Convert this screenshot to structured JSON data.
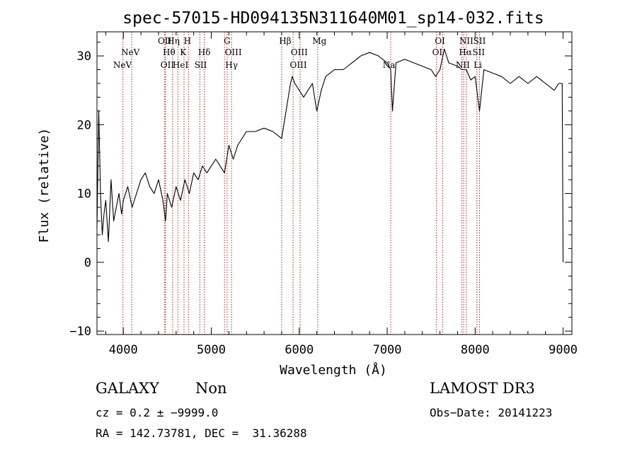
{
  "chart_data": {
    "type": "line",
    "title": "spec-57015-HD094135N311640M01_sp14-032.fits",
    "xlabel": "Wavelength (Å)",
    "ylabel": "Flux (relative)",
    "xlim": [
      3700,
      9100
    ],
    "ylim": [
      -10.5,
      33.5
    ],
    "xticks": [
      4000,
      5000,
      6000,
      7000,
      8000,
      9000
    ],
    "xtick_labels": [
      "4000",
      "5000",
      "6000",
      "7000",
      "8000",
      "9000"
    ],
    "yticks": [
      -10,
      0,
      10,
      20,
      30
    ],
    "ytick_labels": [
      "−10",
      "0",
      "10",
      "20",
      "30"
    ],
    "grid": false,
    "series": [
      {
        "name": "spectrum",
        "x": [
          3700,
          3720,
          3740,
          3760,
          3780,
          3800,
          3830,
          3860,
          3890,
          3920,
          3950,
          3980,
          4000,
          4050,
          4100,
          4150,
          4200,
          4250,
          4300,
          4350,
          4400,
          4450,
          4480,
          4500,
          4550,
          4600,
          4650,
          4700,
          4750,
          4800,
          4850,
          4900,
          4950,
          5000,
          5050,
          5100,
          5150,
          5200,
          5250,
          5300,
          5400,
          5500,
          5600,
          5700,
          5800,
          5850,
          5900,
          5920,
          5950,
          6000,
          6050,
          6100,
          6150,
          6200,
          6250,
          6300,
          6400,
          6500,
          6600,
          6700,
          6800,
          6900,
          6950,
          7000,
          7040,
          7060,
          7100,
          7200,
          7300,
          7400,
          7500,
          7550,
          7600,
          7650,
          7700,
          7800,
          7850,
          7900,
          7950,
          8000,
          8050,
          8100,
          8200,
          8300,
          8400,
          8500,
          8600,
          8700,
          8800,
          8900,
          8950,
          8990,
          9000
        ],
        "y": [
          5,
          22,
          10,
          4,
          7,
          9,
          3,
          12,
          6,
          8,
          10,
          7,
          9,
          11,
          8,
          10,
          12,
          13,
          11,
          10,
          12,
          9,
          6,
          10,
          8,
          11,
          9,
          12,
          10,
          13,
          12,
          14,
          13,
          14,
          15,
          14,
          13,
          17,
          15,
          17,
          19,
          19,
          19.5,
          19,
          18,
          22,
          26,
          27,
          26,
          25,
          24,
          25,
          26,
          22,
          25,
          27,
          28,
          28,
          29,
          30,
          30.5,
          30,
          29.5,
          29,
          28,
          22,
          29,
          29.5,
          29,
          28.5,
          28,
          27,
          28,
          31,
          29,
          28.5,
          28,
          28,
          26.5,
          27,
          22,
          28,
          27.5,
          27,
          26,
          27,
          26,
          27,
          26,
          25,
          26,
          26,
          0
        ]
      }
    ],
    "line_labels_top": [
      {
        "x": 4470,
        "label": "OII"
      },
      {
        "x": 4570,
        "label": "Hη"
      },
      {
        "x": 4730,
        "label": "H"
      },
      {
        "x": 5180,
        "label": "G"
      },
      {
        "x": 5840,
        "label": "Hβ"
      },
      {
        "x": 6230,
        "label": "Mg"
      },
      {
        "x": 7600,
        "label": "OI"
      },
      {
        "x": 7900,
        "label": "NII"
      },
      {
        "x": 8050,
        "label": "SII"
      }
    ],
    "line_labels_mid": [
      {
        "x": 4080,
        "label": "NeV"
      },
      {
        "x": 4520,
        "label": "Hθ"
      },
      {
        "x": 4680,
        "label": "K"
      },
      {
        "x": 4920,
        "label": "Hδ"
      },
      {
        "x": 5250,
        "label": "OIII"
      },
      {
        "x": 6000,
        "label": "OIII"
      },
      {
        "x": 7570,
        "label": "OI"
      },
      {
        "x": 7890,
        "label": "Hα"
      },
      {
        "x": 8040,
        "label": "SII"
      }
    ],
    "line_labels_low": [
      {
        "x": 3990,
        "label": "NeV"
      },
      {
        "x": 4500,
        "label": "OII"
      },
      {
        "x": 4650,
        "label": "HeI"
      },
      {
        "x": 4880,
        "label": "SII"
      },
      {
        "x": 5230,
        "label": "Hγ"
      },
      {
        "x": 5990,
        "label": "OIII"
      },
      {
        "x": 7020,
        "label": "Na"
      },
      {
        "x": 7860,
        "label": "NII"
      },
      {
        "x": 8030,
        "label": "Li"
      }
    ],
    "marker_lines": [
      3995,
      4095,
      4470,
      4480,
      4560,
      4620,
      4690,
      4740,
      4870,
      4920,
      5150,
      5180,
      5230,
      5800,
      5930,
      6010,
      6210,
      7040,
      7560,
      7630,
      7850,
      7870,
      7900,
      8020,
      8050
    ]
  },
  "info": {
    "class": "GALAXY",
    "subclass": "Non",
    "survey": "LAMOST DR3",
    "cz": "cz = 0.2 ± −9999.0",
    "obs_date": "Obs−Date: 20141223",
    "coords": "RA = 142.73781, DEC =  31.36288"
  }
}
